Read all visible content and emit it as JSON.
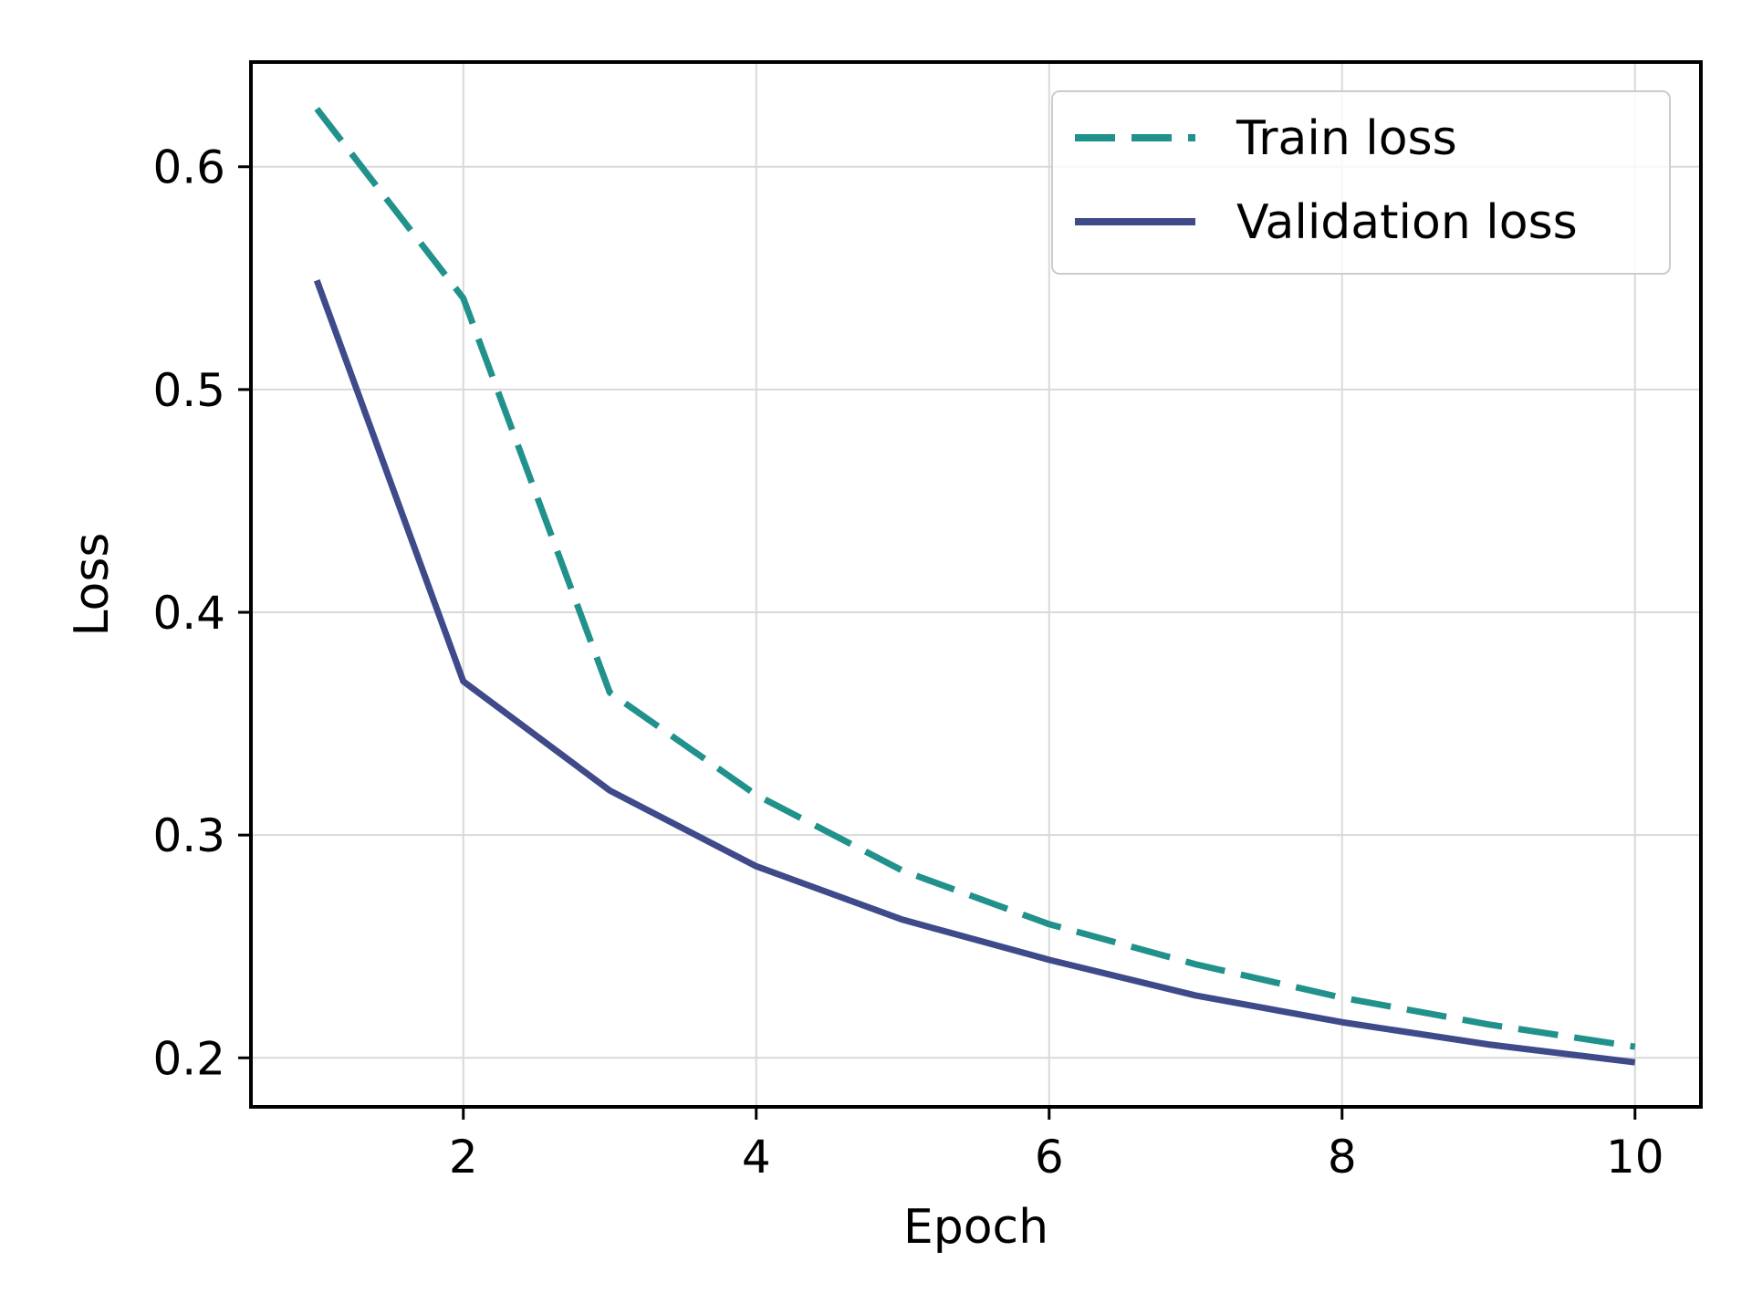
{
  "chart_data": {
    "type": "line",
    "title": "",
    "xlabel": "Epoch",
    "ylabel": "Loss",
    "x": [
      1,
      2,
      3,
      4,
      5,
      6,
      7,
      8,
      9,
      10
    ],
    "xlim": [
      0.55,
      10.45
    ],
    "ylim": [
      0.178,
      0.647
    ],
    "xticks": [
      2,
      4,
      6,
      8,
      10
    ],
    "xtick_labels": [
      "2",
      "4",
      "6",
      "8",
      "10"
    ],
    "yticks": [
      0.2,
      0.3,
      0.4,
      0.5,
      0.6
    ],
    "ytick_labels": [
      "0.2",
      "0.3",
      "0.4",
      "0.5",
      "0.6"
    ],
    "grid": true,
    "legend_position": "top-right",
    "series": [
      {
        "name": "Train loss",
        "style": "dashed",
        "color": "#21918c",
        "values": [
          0.626,
          0.541,
          0.364,
          0.318,
          0.284,
          0.26,
          0.242,
          0.227,
          0.215,
          0.205
        ]
      },
      {
        "name": "Validation loss",
        "style": "solid",
        "color": "#3e4a89",
        "values": [
          0.549,
          0.369,
          0.32,
          0.286,
          0.262,
          0.244,
          0.228,
          0.216,
          0.206,
          0.198
        ]
      }
    ]
  }
}
